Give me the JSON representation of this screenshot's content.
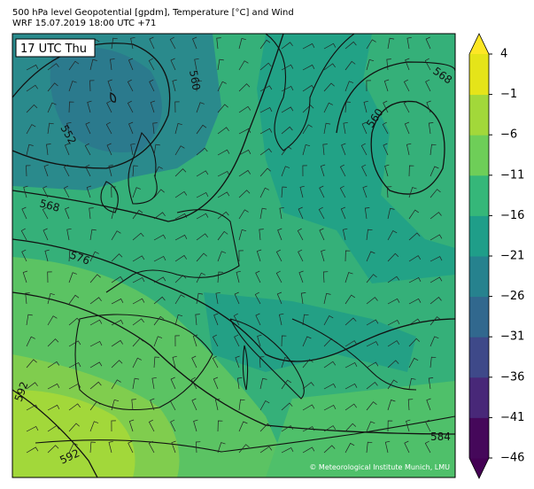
{
  "header": {
    "line1": "500 hPa level Geopotential [gpdm], Temperature [°C] and Wind",
    "line2": "WRF 15.07.2019 18:00 UTC +71"
  },
  "map": {
    "time_label": "17 UTC Thu",
    "contour_labels": [
      "560",
      "552",
      "568",
      "576",
      "592",
      "592",
      "584",
      "560",
      "568"
    ],
    "copyright": "© Meteorological Institute Munich, LMU"
  },
  "colorbar": {
    "ticks": [
      {
        "value": -46,
        "label": "−46"
      },
      {
        "value": -41,
        "label": "−41"
      },
      {
        "value": -36,
        "label": "−36"
      },
      {
        "value": -31,
        "label": "−31"
      },
      {
        "value": -26,
        "label": "−26"
      },
      {
        "value": -21,
        "label": "−21"
      },
      {
        "value": -16,
        "label": "−16"
      },
      {
        "value": -11,
        "label": "−11"
      },
      {
        "value": -6,
        "label": "−6"
      },
      {
        "value": -1,
        "label": "−1"
      },
      4
    ],
    "colors": [
      "#45085a",
      "#482878",
      "#3e4989",
      "#31688e",
      "#26828e",
      "#1f9e89",
      "#35b779",
      "#6ece58",
      "#a2d83a",
      "#e5e419"
    ],
    "under_color": "#440154",
    "over_color": "#fde725"
  }
}
